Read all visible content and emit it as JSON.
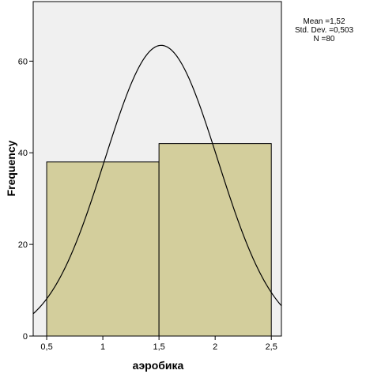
{
  "chart_data": {
    "type": "bar",
    "variant": "histogram-with-normal-curve",
    "bins": [
      {
        "from": 0.5,
        "to": 1.5,
        "count": 38
      },
      {
        "from": 1.5,
        "to": 2.5,
        "count": 42
      }
    ],
    "normal_curve": {
      "mean": 1.52,
      "sd": 0.503,
      "n": 80,
      "bin_width": 1.0
    },
    "xlabel": "аэробика",
    "ylabel": "Frequency",
    "xlim": [
      0.38,
      2.59
    ],
    "ylim": [
      0,
      73
    ],
    "x_ticks": [
      0.5,
      1,
      1.5,
      2,
      2.5
    ],
    "x_tick_labels": [
      "0,5",
      "1",
      "1,5",
      "2",
      "2,5"
    ],
    "y_ticks": [
      0,
      20,
      40,
      60
    ],
    "y_tick_labels": [
      "0",
      "20",
      "40",
      "60"
    ],
    "plot_background": "#f0f0f0",
    "bar_color": "#d3ce9c",
    "grid": false
  },
  "stats": {
    "mean": "Mean =1,52",
    "std_dev": "Std. Dev. =0,503",
    "n": "N =80"
  }
}
